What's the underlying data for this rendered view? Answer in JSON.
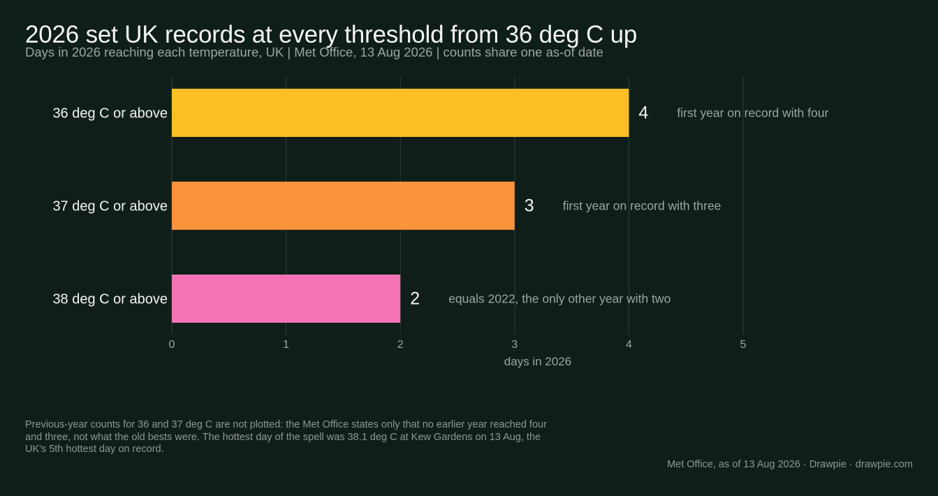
{
  "title": "2026 set UK records at every threshold from 36 deg C up",
  "subtitle": "Days in 2026 reaching each temperature, UK  |  Met Office, 13 Aug 2026  |  counts share one as-of date",
  "chart_data": {
    "type": "bar",
    "orientation": "horizontal",
    "categories": [
      "36 deg C or above",
      "37 deg C or above",
      "38 deg C or above"
    ],
    "values": [
      4,
      3,
      2
    ],
    "annotations": [
      "first year on record with four",
      "first year on record with three",
      "equals 2022, the only other year with two"
    ],
    "colors": [
      "#fbbf24",
      "#fb923c",
      "#f472b6"
    ],
    "xlabel": "days in 2026",
    "xlim": [
      0,
      5
    ],
    "xticks": [
      "0",
      "1",
      "2",
      "3",
      "4",
      "5"
    ],
    "grid": true
  },
  "note": "Previous-year counts for 36 and 37 deg C are not plotted: the Met Office states only that no earlier year reached four and three, not what the old bests were. The hottest day of the spell was 38.1 deg C at Kew Gardens on 13 Aug, the UK's 5th hottest day on record.",
  "source": "Met Office, as of 13 Aug 2026  ·  Drawpie · drawpie.com",
  "colors": {
    "background": "#101e19",
    "grid": "#26342f",
    "text": "#f3f5f3",
    "muted": "#9aa6a1"
  }
}
